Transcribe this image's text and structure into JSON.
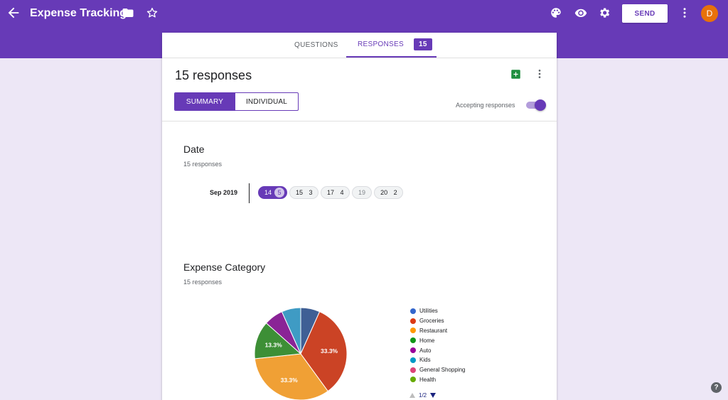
{
  "header": {
    "title": "Expense Tracking",
    "send_label": "SEND",
    "avatar_letter": "D",
    "accent": "#673ab7"
  },
  "tabs": [
    {
      "label": "QUESTIONS",
      "active": false
    },
    {
      "label": "RESPONSES",
      "active": true,
      "count": "15"
    }
  ],
  "responses": {
    "title": "15 responses",
    "view_tabs": [
      "SUMMARY",
      "INDIVIDUAL"
    ],
    "accepting_label": "Accepting responses",
    "accepting": true
  },
  "date_question": {
    "title": "Date",
    "subtitle": "15 responses",
    "month": "Sep 2019",
    "chips": [
      {
        "day": "14",
        "count": "5",
        "selected": true
      },
      {
        "day": "15",
        "count": "3",
        "selected": false
      },
      {
        "day": "17",
        "count": "4",
        "selected": false
      },
      {
        "day": "19",
        "count": "",
        "selected": false
      },
      {
        "day": "20",
        "count": "2",
        "selected": false
      }
    ]
  },
  "category_question": {
    "title": "Expense Category",
    "subtitle": "15 responses",
    "legend": [
      {
        "label": "Utilities",
        "color": "#3366cc"
      },
      {
        "label": "Groceries",
        "color": "#dc3912"
      },
      {
        "label": "Restaurant",
        "color": "#ff9900"
      },
      {
        "label": "Home",
        "color": "#109618"
      },
      {
        "label": "Auto",
        "color": "#990099"
      },
      {
        "label": "Kids",
        "color": "#0099c6"
      },
      {
        "label": "General Shopping",
        "color": "#dd4477"
      },
      {
        "label": "Health",
        "color": "#66aa00"
      }
    ],
    "pager": "1/2"
  },
  "chart_data": {
    "type": "pie",
    "slices": [
      {
        "label": "Utilities",
        "value": 6.7,
        "color": "#3f5f95"
      },
      {
        "label": "Groceries",
        "value": 33.3,
        "color": "#cb4325",
        "data_label": "33.3%"
      },
      {
        "label": "Restaurant",
        "value": 33.3,
        "color": "#f0a035",
        "data_label": "33.3%"
      },
      {
        "label": "Home",
        "value": 13.3,
        "color": "#3d8f36",
        "data_label": "13.3%"
      },
      {
        "label": "Auto",
        "value": 6.7,
        "color": "#8a2496"
      },
      {
        "label": "Kids",
        "value": 6.7,
        "color": "#3f9bc4"
      }
    ]
  }
}
